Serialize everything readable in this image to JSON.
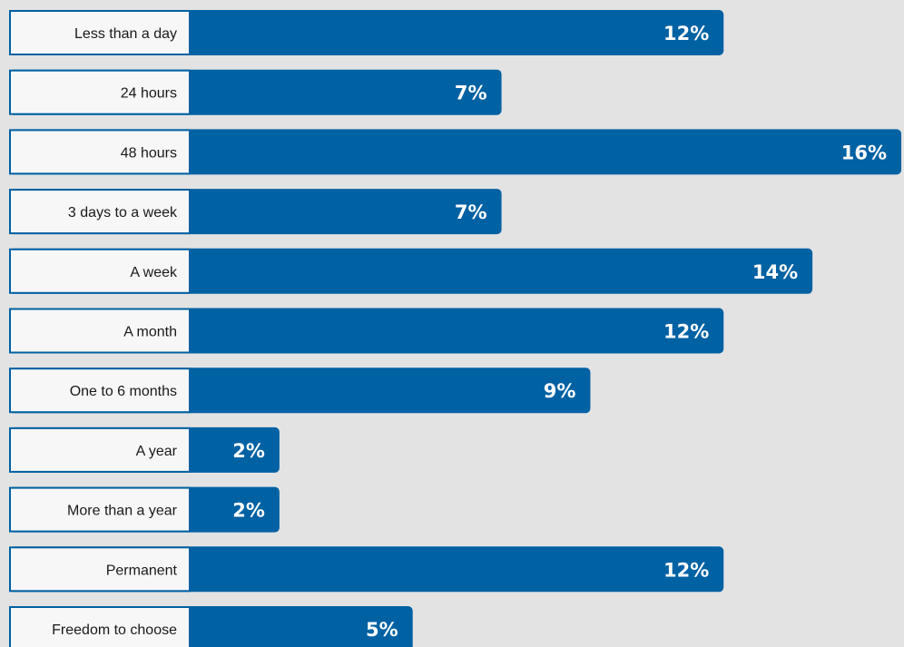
{
  "chart_data": {
    "type": "bar",
    "orientation": "horizontal",
    "categories": [
      "Less than a day",
      "24 hours",
      "48 hours",
      "3 days to a week",
      "A week",
      "A month",
      "One to 6 months",
      "A year",
      "More than a year",
      "Permanent",
      "Freedom to choose"
    ],
    "values": [
      12,
      7,
      16,
      7,
      14,
      12,
      9,
      2,
      2,
      12,
      5
    ],
    "value_labels": [
      "12%",
      "7%",
      "16%",
      "7%",
      "14%",
      "12%",
      "9%",
      "2%",
      "2%",
      "12%",
      "5%"
    ],
    "unit": "%",
    "xlim": [
      0,
      16
    ],
    "grid": false,
    "legend": "none",
    "colors": {
      "background": "#e3e3e3",
      "bar": "#0061a3",
      "label_box": "#f7f7f7",
      "label_border": "#0061a3",
      "value_text": "#ffffff",
      "category_text": "#1a1a1a"
    }
  }
}
